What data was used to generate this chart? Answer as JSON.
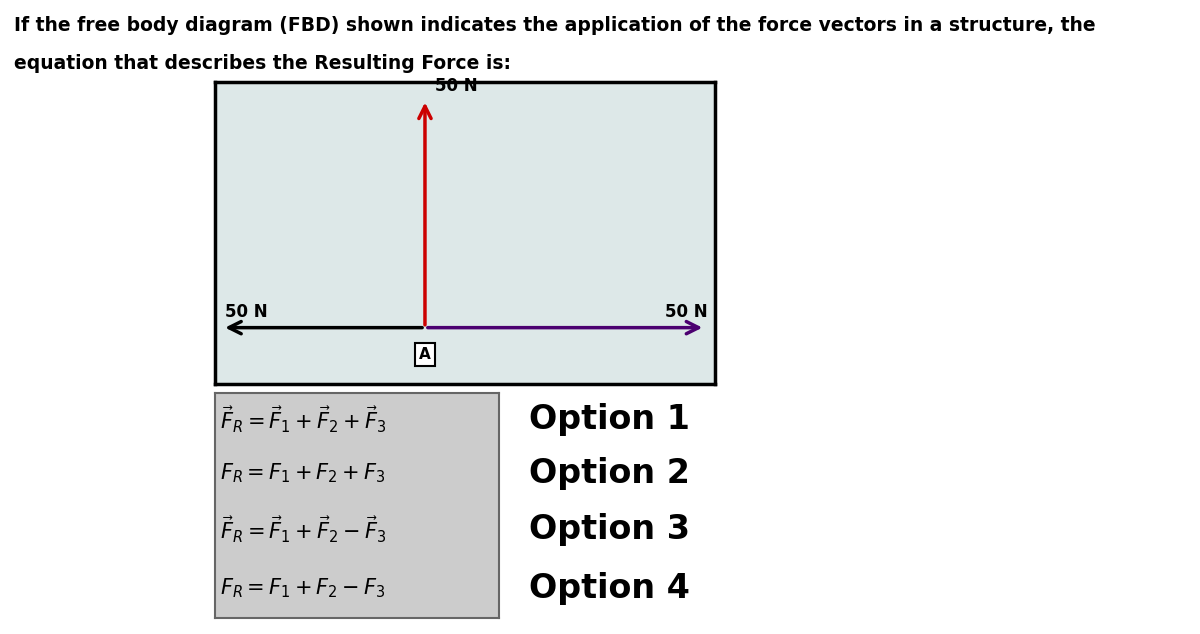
{
  "title_line1": "If the free body diagram (FBD) shown indicates the application of the force vectors in a structure, the",
  "title_line2": "equation that describes the Resulting Force is:",
  "fbd_bg_color": "#dde8e8",
  "fbd_border_color": "#000000",
  "arrow_up_color": "#cc0000",
  "arrow_horiz_color_right": "#4b0070",
  "arrow_horiz_color_left": "#000000",
  "label_50N_up": "50 N",
  "label_50N_left": "50 N",
  "label_50N_right": "50 N",
  "label_A": "A",
  "bg_color": "#ffffff",
  "options_bg_color": "#cccccc",
  "title_fontsize": 13.5,
  "eq_fontsize": 15,
  "option_label_fontsize": 24
}
